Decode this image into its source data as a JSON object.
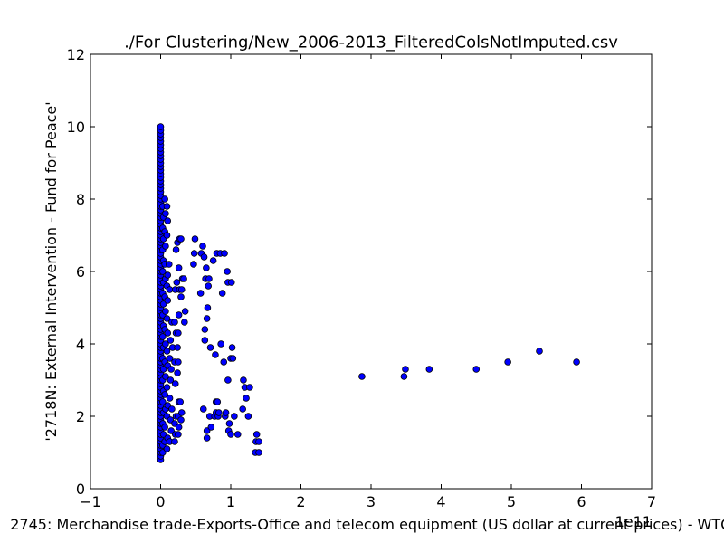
{
  "chart_data": {
    "type": "scatter",
    "title": "./For Clustering/New_2006-2013_FilteredColsNotImputed.csv",
    "xlabel": "2745: Merchandise trade-Exports-Office and telecom equipment (US dollar at current prices) - WTO",
    "ylabel": "'2718N: External Intervention - Fund for Peace'",
    "x_offset_text": "1e11",
    "xlim": [
      -1,
      7
    ],
    "ylim": [
      0,
      12
    ],
    "x_ticks": [
      -1,
      0,
      1,
      2,
      3,
      4,
      5,
      6,
      7
    ],
    "y_ticks": [
      0,
      2,
      4,
      6,
      8,
      10,
      12
    ],
    "x_tick_labels": [
      "−1",
      "0",
      "1",
      "2",
      "3",
      "4",
      "5",
      "6",
      "7"
    ],
    "y_tick_labels": [
      "0",
      "2",
      "4",
      "6",
      "8",
      "10",
      "12"
    ],
    "grid": false,
    "marker_color": "#0000ff",
    "marker_edge_color": "#000000",
    "points": [
      [
        0.0,
        0.8
      ],
      [
        0.0,
        0.9
      ],
      [
        0.0,
        1.0
      ],
      [
        0.0,
        1.1
      ],
      [
        0.0,
        1.2
      ],
      [
        0.0,
        1.3
      ],
      [
        0.0,
        1.4
      ],
      [
        0.0,
        1.5
      ],
      [
        0.0,
        1.6
      ],
      [
        0.0,
        1.7
      ],
      [
        0.0,
        1.8
      ],
      [
        0.0,
        1.9
      ],
      [
        0.0,
        2.0
      ],
      [
        0.0,
        2.1
      ],
      [
        0.0,
        2.2
      ],
      [
        0.0,
        2.3
      ],
      [
        0.0,
        2.4
      ],
      [
        0.0,
        2.5
      ],
      [
        0.0,
        2.6
      ],
      [
        0.0,
        2.7
      ],
      [
        0.0,
        2.8
      ],
      [
        0.0,
        2.9
      ],
      [
        0.0,
        3.0
      ],
      [
        0.0,
        3.1
      ],
      [
        0.0,
        3.2
      ],
      [
        0.0,
        3.3
      ],
      [
        0.0,
        3.4
      ],
      [
        0.0,
        3.5
      ],
      [
        0.0,
        3.6
      ],
      [
        0.0,
        3.7
      ],
      [
        0.0,
        3.8
      ],
      [
        0.0,
        3.9
      ],
      [
        0.0,
        4.0
      ],
      [
        0.0,
        4.1
      ],
      [
        0.0,
        4.2
      ],
      [
        0.0,
        4.3
      ],
      [
        0.0,
        4.4
      ],
      [
        0.0,
        4.5
      ],
      [
        0.0,
        4.6
      ],
      [
        0.0,
        4.7
      ],
      [
        0.0,
        4.8
      ],
      [
        0.0,
        4.9
      ],
      [
        0.0,
        5.0
      ],
      [
        0.0,
        5.1
      ],
      [
        0.0,
        5.2
      ],
      [
        0.0,
        5.3
      ],
      [
        0.0,
        5.4
      ],
      [
        0.0,
        5.5
      ],
      [
        0.0,
        5.6
      ],
      [
        0.0,
        5.7
      ],
      [
        0.0,
        5.8
      ],
      [
        0.0,
        5.9
      ],
      [
        0.0,
        6.0
      ],
      [
        0.0,
        6.1
      ],
      [
        0.0,
        6.2
      ],
      [
        0.0,
        6.3
      ],
      [
        0.0,
        6.4
      ],
      [
        0.0,
        6.5
      ],
      [
        0.0,
        6.6
      ],
      [
        0.0,
        6.7
      ],
      [
        0.0,
        6.8
      ],
      [
        0.0,
        6.9
      ],
      [
        0.0,
        7.0
      ],
      [
        0.0,
        7.1
      ],
      [
        0.0,
        7.2
      ],
      [
        0.0,
        7.3
      ],
      [
        0.0,
        7.4
      ],
      [
        0.0,
        7.5
      ],
      [
        0.0,
        7.6
      ],
      [
        0.0,
        7.7
      ],
      [
        0.0,
        7.8
      ],
      [
        0.0,
        7.9
      ],
      [
        0.0,
        8.0
      ],
      [
        0.0,
        8.1
      ],
      [
        0.0,
        8.2
      ],
      [
        0.0,
        8.3
      ],
      [
        0.0,
        8.4
      ],
      [
        0.0,
        8.5
      ],
      [
        0.0,
        8.6
      ],
      [
        0.0,
        8.7
      ],
      [
        0.0,
        8.8
      ],
      [
        0.0,
        8.9
      ],
      [
        0.0,
        9.0
      ],
      [
        0.0,
        9.1
      ],
      [
        0.0,
        9.2
      ],
      [
        0.0,
        9.3
      ],
      [
        0.0,
        9.4
      ],
      [
        0.0,
        9.5
      ],
      [
        0.0,
        9.6
      ],
      [
        0.0,
        9.7
      ],
      [
        0.0,
        9.8
      ],
      [
        0.0,
        9.9
      ],
      [
        0.0,
        10.0
      ],
      [
        0.03,
        1.0
      ],
      [
        0.03,
        1.2
      ],
      [
        0.04,
        1.5
      ],
      [
        0.03,
        1.8
      ],
      [
        0.04,
        2.1
      ],
      [
        0.03,
        2.4
      ],
      [
        0.04,
        2.7
      ],
      [
        0.03,
        3.0
      ],
      [
        0.04,
        3.3
      ],
      [
        0.03,
        3.6
      ],
      [
        0.04,
        3.9
      ],
      [
        0.03,
        4.2
      ],
      [
        0.04,
        4.5
      ],
      [
        0.03,
        4.8
      ],
      [
        0.04,
        5.1
      ],
      [
        0.03,
        5.4
      ],
      [
        0.04,
        5.7
      ],
      [
        0.03,
        6.0
      ],
      [
        0.04,
        6.3
      ],
      [
        0.03,
        6.6
      ],
      [
        0.04,
        6.9
      ],
      [
        0.03,
        7.2
      ],
      [
        0.04,
        7.5
      ],
      [
        0.03,
        7.8
      ],
      [
        0.06,
        1.3
      ],
      [
        0.06,
        1.7
      ],
      [
        0.07,
        2.2
      ],
      [
        0.06,
        2.6
      ],
      [
        0.07,
        3.1
      ],
      [
        0.06,
        3.5
      ],
      [
        0.07,
        4.0
      ],
      [
        0.06,
        4.4
      ],
      [
        0.07,
        4.9
      ],
      [
        0.06,
        5.3
      ],
      [
        0.07,
        5.8
      ],
      [
        0.06,
        6.2
      ],
      [
        0.07,
        6.7
      ],
      [
        0.06,
        7.1
      ],
      [
        0.07,
        7.6
      ],
      [
        0.06,
        8.0
      ],
      [
        0.09,
        1.1
      ],
      [
        0.1,
        1.4
      ],
      [
        0.09,
        2.0
      ],
      [
        0.1,
        2.3
      ],
      [
        0.09,
        2.8
      ],
      [
        0.1,
        3.4
      ],
      [
        0.09,
        3.8
      ],
      [
        0.1,
        4.3
      ],
      [
        0.09,
        4.7
      ],
      [
        0.1,
        5.2
      ],
      [
        0.09,
        5.6
      ],
      [
        0.1,
        5.9
      ],
      [
        0.09,
        7.0
      ],
      [
        0.1,
        7.4
      ],
      [
        0.09,
        7.8
      ],
      [
        0.13,
        1.3
      ],
      [
        0.14,
        1.9
      ],
      [
        0.13,
        2.5
      ],
      [
        0.14,
        3.0
      ],
      [
        0.13,
        3.6
      ],
      [
        0.14,
        4.1
      ],
      [
        0.13,
        5.5
      ],
      [
        0.12,
        6.2
      ],
      [
        0.15,
        1.6
      ],
      [
        0.16,
        2.2
      ],
      [
        0.15,
        3.3
      ],
      [
        0.17,
        3.9
      ],
      [
        0.16,
        4.6
      ],
      [
        0.2,
        1.3
      ],
      [
        0.21,
        1.5
      ],
      [
        0.2,
        1.8
      ],
      [
        0.22,
        2.0
      ],
      [
        0.21,
        2.9
      ],
      [
        0.2,
        3.5
      ],
      [
        0.22,
        4.3
      ],
      [
        0.2,
        4.6
      ],
      [
        0.21,
        5.5
      ],
      [
        0.23,
        5.7
      ],
      [
        0.22,
        6.6
      ],
      [
        0.24,
        6.8
      ],
      [
        0.25,
        1.5
      ],
      [
        0.26,
        1.7
      ],
      [
        0.25,
        2.0
      ],
      [
        0.26,
        2.4
      ],
      [
        0.24,
        3.2
      ],
      [
        0.25,
        3.5
      ],
      [
        0.24,
        3.9
      ],
      [
        0.25,
        4.3
      ],
      [
        0.26,
        4.8
      ],
      [
        0.27,
        5.5
      ],
      [
        0.26,
        6.1
      ],
      [
        0.27,
        6.9
      ],
      [
        0.29,
        1.9
      ],
      [
        0.3,
        2.1
      ],
      [
        0.28,
        2.4
      ],
      [
        0.29,
        5.3
      ],
      [
        0.3,
        5.5
      ],
      [
        0.31,
        5.8
      ],
      [
        0.29,
        6.9
      ],
      [
        0.34,
        4.6
      ],
      [
        0.35,
        4.9
      ],
      [
        0.33,
        5.8
      ],
      [
        0.47,
        6.2
      ],
      [
        0.48,
        6.5
      ],
      [
        0.49,
        6.9
      ],
      [
        0.57,
        5.4
      ],
      [
        0.58,
        6.5
      ],
      [
        0.6,
        6.7
      ],
      [
        0.61,
        2.2
      ],
      [
        0.62,
        6.4
      ],
      [
        0.63,
        4.1
      ],
      [
        0.63,
        4.4
      ],
      [
        0.64,
        5.8
      ],
      [
        0.65,
        6.1
      ],
      [
        0.66,
        1.4
      ],
      [
        0.66,
        1.6
      ],
      [
        0.66,
        4.7
      ],
      [
        0.67,
        5.0
      ],
      [
        0.68,
        5.6
      ],
      [
        0.69,
        5.8
      ],
      [
        0.7,
        2.0
      ],
      [
        0.71,
        3.9
      ],
      [
        0.72,
        1.7
      ],
      [
        0.75,
        6.3
      ],
      [
        0.77,
        2.0
      ],
      [
        0.78,
        3.7
      ],
      [
        0.79,
        2.1
      ],
      [
        0.79,
        2.4
      ],
      [
        0.8,
        6.5
      ],
      [
        0.81,
        2.4
      ],
      [
        0.82,
        2.0
      ],
      [
        0.83,
        2.1
      ],
      [
        0.85,
        6.5
      ],
      [
        0.86,
        4.0
      ],
      [
        0.88,
        5.4
      ],
      [
        0.9,
        3.5
      ],
      [
        0.91,
        6.5
      ],
      [
        0.92,
        2.0
      ],
      [
        0.93,
        2.1
      ],
      [
        0.95,
        6.0
      ],
      [
        0.96,
        3.0
      ],
      [
        0.96,
        5.7
      ],
      [
        0.97,
        1.6
      ],
      [
        0.98,
        1.8
      ],
      [
        1.0,
        1.5
      ],
      [
        1.0,
        3.6
      ],
      [
        1.01,
        5.7
      ],
      [
        1.02,
        3.9
      ],
      [
        1.03,
        3.6
      ],
      [
        1.05,
        2.0
      ],
      [
        1.1,
        1.5
      ],
      [
        1.17,
        2.2
      ],
      [
        1.18,
        3.0
      ],
      [
        1.2,
        2.8
      ],
      [
        1.22,
        2.5
      ],
      [
        1.25,
        2.0
      ],
      [
        1.27,
        2.8
      ],
      [
        1.35,
        1.0
      ],
      [
        1.36,
        1.3
      ],
      [
        1.37,
        1.5
      ],
      [
        1.4,
        1.0
      ],
      [
        1.4,
        1.3
      ],
      [
        2.87,
        3.1
      ],
      [
        3.47,
        3.1
      ],
      [
        3.49,
        3.3
      ],
      [
        3.83,
        3.3
      ],
      [
        4.5,
        3.3
      ],
      [
        4.95,
        3.5
      ],
      [
        5.4,
        3.8
      ],
      [
        5.93,
        3.5
      ]
    ]
  }
}
